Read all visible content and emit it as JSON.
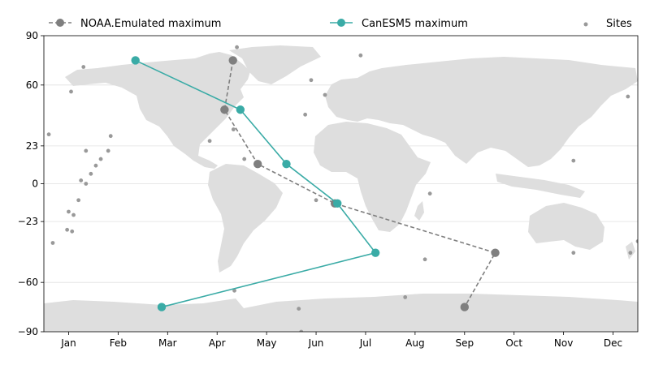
{
  "chart_data": {
    "type": "scatter",
    "background": "world-map",
    "legend": {
      "placement": "top",
      "entries": [
        {
          "key": "noaa",
          "label": "NOAA.Emulated maximum"
        },
        {
          "key": "canesm",
          "label": "CanESM5 maximum"
        },
        {
          "key": "sites",
          "label": "Sites"
        }
      ]
    },
    "xlim": [
      0,
      12
    ],
    "ylim": [
      -90,
      90
    ],
    "x_ticks": [
      {
        "label": "Jan",
        "value": 0.5
      },
      {
        "label": "Feb",
        "value": 1.5
      },
      {
        "label": "Mar",
        "value": 2.5
      },
      {
        "label": "Apr",
        "value": 3.5
      },
      {
        "label": "May",
        "value": 4.5
      },
      {
        "label": "Jun",
        "value": 5.5
      },
      {
        "label": "Jul",
        "value": 6.5
      },
      {
        "label": "Aug",
        "value": 7.5
      },
      {
        "label": "Sep",
        "value": 8.5
      },
      {
        "label": "Oct",
        "value": 9.5
      },
      {
        "label": "Nov",
        "value": 10.5
      },
      {
        "label": "Dec",
        "value": 11.5
      }
    ],
    "y_ticks": [
      {
        "label": "90",
        "value": 90
      },
      {
        "label": "60",
        "value": 60
      },
      {
        "label": "23",
        "value": 23
      },
      {
        "label": "0",
        "value": 0
      },
      {
        "label": "−23",
        "value": -23
      },
      {
        "label": "−60",
        "value": -60
      },
      {
        "label": "−90",
        "value": -90
      }
    ],
    "gridlines_y": [
      60,
      23,
      0,
      -23,
      -60
    ],
    "series": [
      {
        "key": "noaa",
        "color": "#7f7f7f",
        "line_style": "dashed",
        "points": [
          {
            "x": 3.82,
            "y": 75
          },
          {
            "x": 3.65,
            "y": 45
          },
          {
            "x": 4.32,
            "y": 12
          },
          {
            "x": 5.88,
            "y": -12
          },
          {
            "x": 9.12,
            "y": -42
          },
          {
            "x": 8.5,
            "y": -75
          }
        ]
      },
      {
        "key": "canesm",
        "color": "#3aaba6",
        "line_style": "solid",
        "points": [
          {
            "x": 1.85,
            "y": 75
          },
          {
            "x": 3.97,
            "y": 45
          },
          {
            "x": 4.9,
            "y": 12
          },
          {
            "x": 5.93,
            "y": -12
          },
          {
            "x": 6.7,
            "y": -42
          },
          {
            "x": 2.38,
            "y": -75
          }
        ]
      }
    ],
    "sites": {
      "color": "#999999",
      "points": [
        [
          3.9,
          83
        ],
        [
          0.8,
          71
        ],
        [
          0.55,
          56
        ],
        [
          0.1,
          30
        ],
        [
          0.85,
          20
        ],
        [
          1.35,
          29
        ],
        [
          1.3,
          20
        ],
        [
          1.15,
          15
        ],
        [
          1.05,
          11
        ],
        [
          0.95,
          6
        ],
        [
          0.75,
          2
        ],
        [
          0.85,
          0
        ],
        [
          0.7,
          -10
        ],
        [
          0.6,
          -19
        ],
        [
          0.57,
          -29
        ],
        [
          0.5,
          -17
        ],
        [
          0.47,
          -28
        ],
        [
          0.18,
          -36
        ],
        [
          3.83,
          33
        ],
        [
          3.35,
          26
        ],
        [
          4.05,
          15
        ],
        [
          5.28,
          42
        ],
        [
          5.4,
          63
        ],
        [
          5.68,
          54
        ],
        [
          6.4,
          78
        ],
        [
          5.5,
          -10
        ],
        [
          7.8,
          -6
        ],
        [
          7.7,
          -46
        ],
        [
          7.3,
          -69
        ],
        [
          5.15,
          -76
        ],
        [
          5.2,
          -90
        ],
        [
          3.85,
          -65
        ],
        [
          10.7,
          14
        ],
        [
          10.7,
          -42
        ],
        [
          11.8,
          53
        ],
        [
          11.85,
          -42
        ],
        [
          12.0,
          -35
        ]
      ]
    }
  }
}
